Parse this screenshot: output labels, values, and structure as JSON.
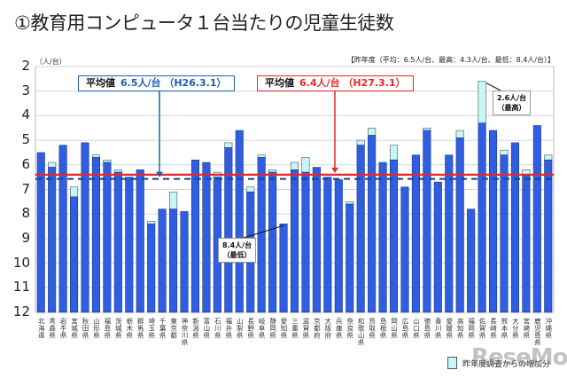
{
  "title": "①教育用コンピュータ１台当たりの児童生徒数",
  "chart_data": {
    "type": "bar",
    "title": "①教育用コンピュータ１台当たりの児童生徒数",
    "ylabel": "（人/台）",
    "ylim": [
      2,
      12
    ],
    "y_inverted": true,
    "yticks": [
      "2",
      "3",
      "4",
      "5",
      "6",
      "7",
      "8",
      "9",
      "10",
      "11",
      "12"
    ],
    "grid": true,
    "note": "【昨年度（平均：6.5人/台、最高：4.3人/台、最低：8.4人/台）】",
    "categories": [
      "北海道",
      "青森県",
      "岩手県",
      "宮城県",
      "秋田県",
      "山形県",
      "福島県",
      "茨城県",
      "栃木県",
      "群馬県",
      "埼玉県",
      "千葉県",
      "東京都",
      "神奈川県",
      "新潟県",
      "富山県",
      "石川県",
      "福井県",
      "山梨県",
      "長野県",
      "岐阜県",
      "静岡県",
      "愛知県",
      "三重県",
      "滋賀県",
      "京都府",
      "大阪府",
      "兵庫県",
      "奈良県",
      "和歌山県",
      "鳥取県",
      "島根県",
      "岡山県",
      "広島県",
      "山口県",
      "徳島県",
      "香川県",
      "愛媛県",
      "高知県",
      "福岡県",
      "佐賀県",
      "長崎県",
      "熊本県",
      "大分県",
      "宮崎県",
      "鹿児島県",
      "沖縄県"
    ],
    "series": [
      {
        "values_current": [
          5.5,
          5.9,
          5.2,
          6.9,
          5.1,
          5.6,
          5.8,
          6.2,
          6.5,
          6.2,
          8.3,
          7.8,
          7.1,
          7.9,
          5.8,
          5.9,
          6.3,
          5.1,
          4.6,
          6.9,
          5.6,
          6.2,
          8.4,
          5.9,
          5.7,
          6.1,
          6.5,
          6.6,
          7.5,
          5.0,
          4.5,
          5.9,
          5.2,
          6.9,
          5.6,
          4.5,
          6.7,
          5.6,
          4.6,
          7.8,
          2.6,
          4.6,
          5.4,
          5.1,
          6.2,
          4.4,
          5.6
        ],
        "values_previous": [
          5.5,
          6.1,
          5.2,
          7.3,
          5.1,
          5.7,
          5.9,
          6.3,
          6.5,
          6.2,
          8.4,
          7.8,
          7.8,
          7.9,
          5.8,
          5.9,
          6.5,
          5.3,
          4.6,
          7.1,
          5.7,
          6.3,
          8.4,
          6.2,
          6.3,
          6.1,
          6.5,
          6.6,
          7.6,
          5.2,
          4.8,
          5.9,
          5.8,
          6.9,
          5.6,
          4.6,
          6.7,
          5.6,
          4.9,
          7.8,
          4.3,
          4.6,
          5.6,
          5.1,
          6.4,
          4.4,
          5.8
        ]
      }
    ],
    "colors": {
      "bar": "#2f5ee0",
      "increase": "#c9f5f7",
      "avg_current": "#e8262a",
      "avg_previous": "#1f3e8c"
    },
    "legend": {
      "label": "昨年度調査からの増加分",
      "placement": "bottom-right"
    },
    "averages": [
      {
        "label": "平均値",
        "value_text": "6.5人/台 （H26.3.1）",
        "value": 6.5,
        "color": "#1a5fb4",
        "style": "dashed"
      },
      {
        "label": "平均値",
        "value_text": "6.4人/台 （H27.3.1）",
        "value": 6.4,
        "color": "#e8262a",
        "style": "solid"
      }
    ],
    "annotations": [
      {
        "text": "8.4人/台",
        "sub": "（最低）",
        "target": "愛知県"
      },
      {
        "text": "2.6人/台",
        "sub": "（最高）",
        "target": "佐賀県"
      }
    ]
  },
  "watermark": "ReseMom"
}
